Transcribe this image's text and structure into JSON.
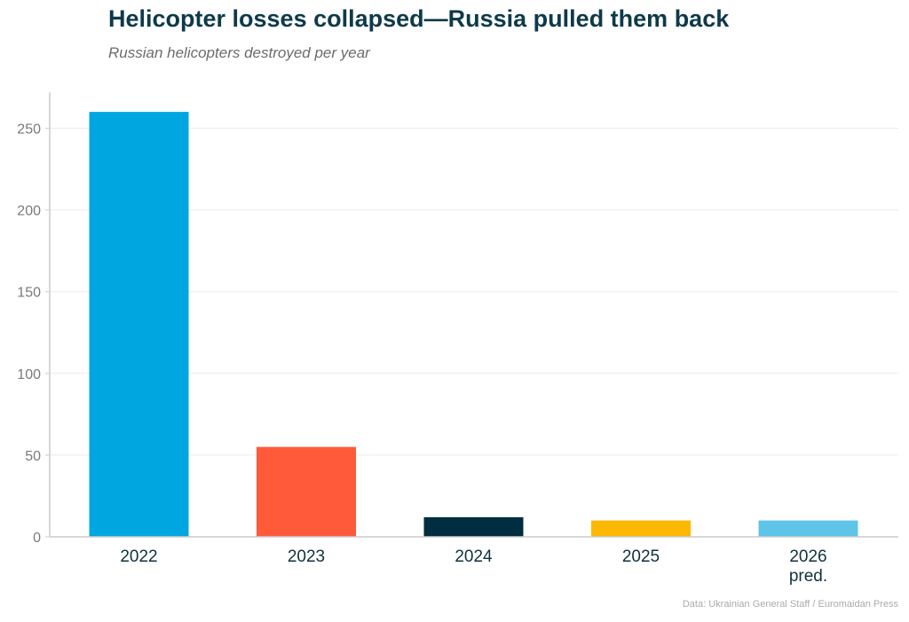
{
  "header": {
    "title": "Helicopter losses collapsed—Russia pulled them back",
    "subtitle": "Russian helicopters destroyed per year"
  },
  "footer": {
    "source": "Data: Ukrainian General Staff / Euromaidan Press"
  },
  "chart_data": {
    "type": "bar",
    "title": "Helicopter losses collapsed—Russia pulled them back",
    "subtitle": "Russian helicopters destroyed per year",
    "xlabel": "",
    "ylabel": "",
    "categories": [
      [
        "2022"
      ],
      [
        "2023"
      ],
      [
        "2024"
      ],
      [
        "2025"
      ],
      [
        "2026",
        "pred."
      ]
    ],
    "values": [
      260,
      55,
      12,
      10,
      10
    ],
    "colors": [
      "#00a6e0",
      "#ff5a3a",
      "#002d3f",
      "#fcb700",
      "#5ec5e8"
    ],
    "ylim": [
      0,
      272
    ],
    "yticks": [
      0,
      50,
      100,
      150,
      200,
      250
    ],
    "grid": "horizontal",
    "legend": "none"
  }
}
